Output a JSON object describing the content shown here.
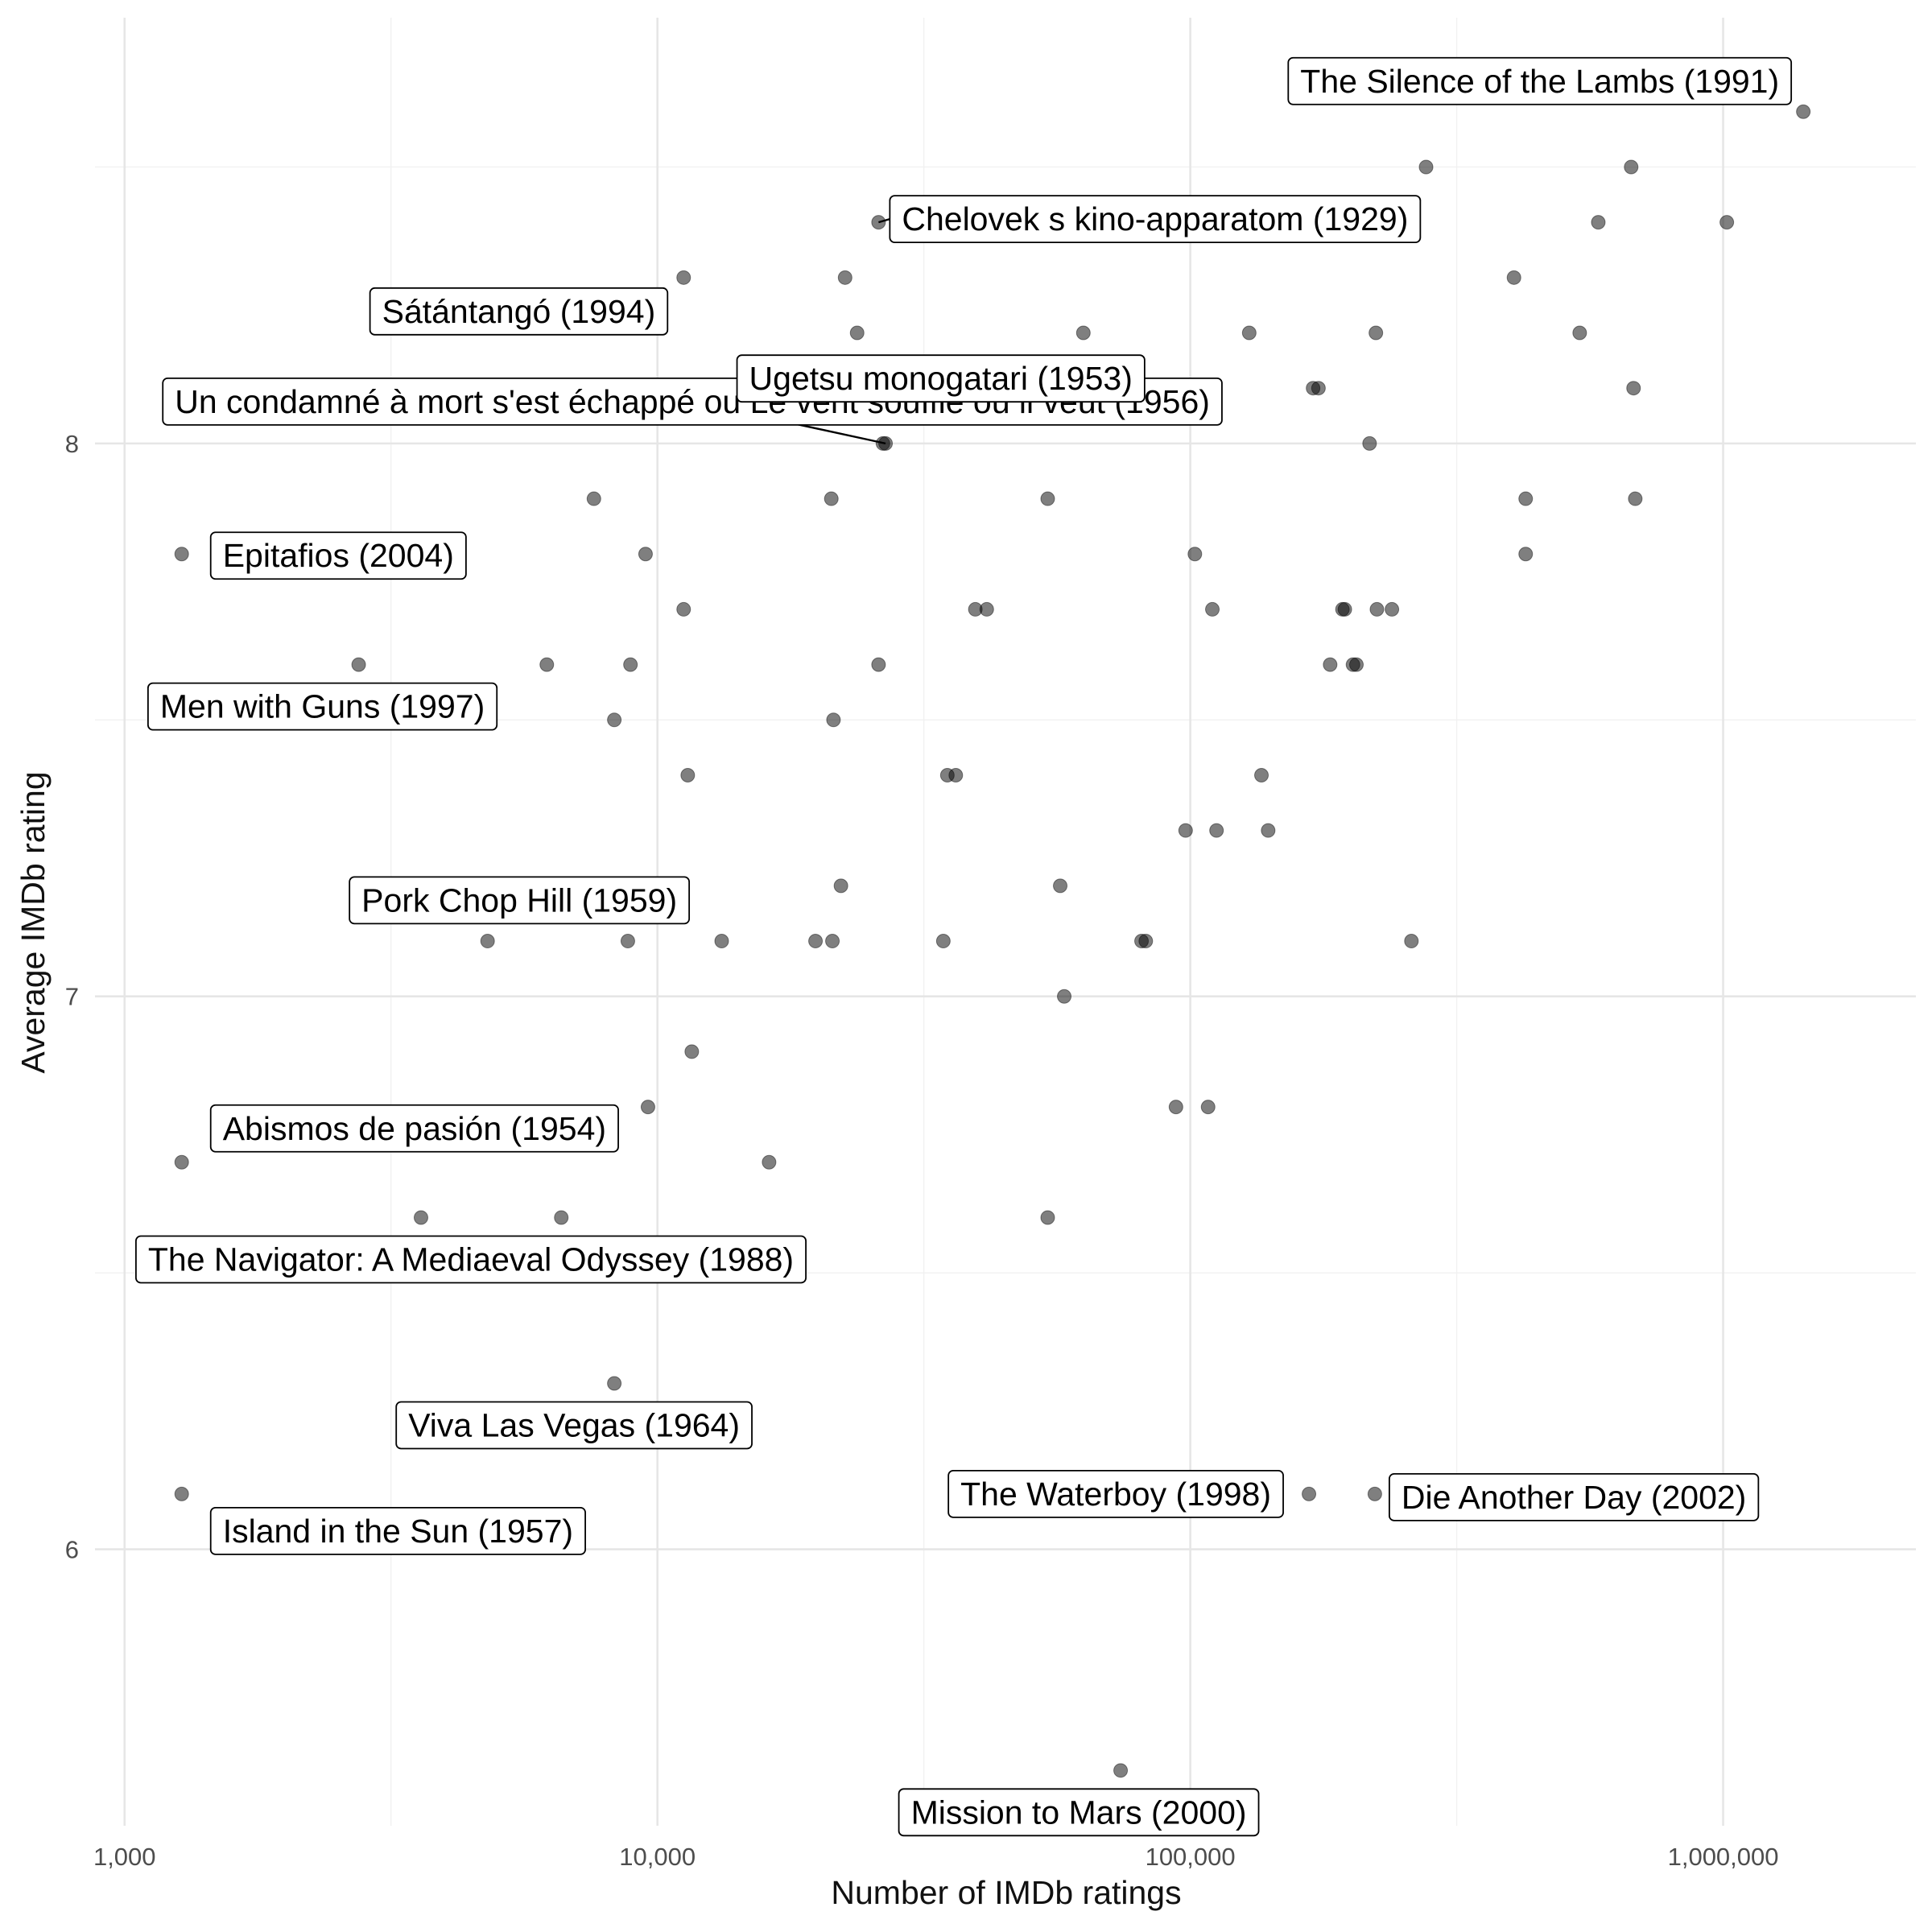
{
  "chart_data": {
    "type": "scatter",
    "title": "",
    "xlabel": "Number of IMDb ratings",
    "ylabel": "Average IMDb rating",
    "x_scale": "log10",
    "xlim": [
      880,
      2300000
    ],
    "ylim": [
      5.5,
      8.77
    ],
    "grid": true,
    "x_ticks": [
      {
        "value": 1000,
        "label": "1,000"
      },
      {
        "value": 10000,
        "label": "10,000"
      },
      {
        "value": 100000,
        "label": "100,000"
      },
      {
        "value": 1000000,
        "label": "1,000,000"
      }
    ],
    "y_ticks": [
      {
        "value": 6,
        "label": "6"
      },
      {
        "value": 7,
        "label": "7"
      },
      {
        "value": 8,
        "label": "8"
      }
    ],
    "points": [
      {
        "x": 1414000,
        "y": 8.6
      },
      {
        "x": 277000,
        "y": 8.5
      },
      {
        "x": 672000,
        "y": 8.5
      },
      {
        "x": 26000,
        "y": 8.4
      },
      {
        "x": 583000,
        "y": 8.4
      },
      {
        "x": 1016000,
        "y": 8.4
      },
      {
        "x": 11200,
        "y": 8.3
      },
      {
        "x": 22500,
        "y": 8.3
      },
      {
        "x": 405000,
        "y": 8.3
      },
      {
        "x": 23700,
        "y": 8.2
      },
      {
        "x": 63000,
        "y": 8.2
      },
      {
        "x": 129000,
        "y": 8.2
      },
      {
        "x": 223000,
        "y": 8.2
      },
      {
        "x": 538000,
        "y": 8.2
      },
      {
        "x": 88000,
        "y": 8.1
      },
      {
        "x": 170000,
        "y": 8.1
      },
      {
        "x": 174000,
        "y": 8.1
      },
      {
        "x": 679000,
        "y": 8.1
      },
      {
        "x": 26500,
        "y": 8.0
      },
      {
        "x": 26800,
        "y": 8.0
      },
      {
        "x": 217000,
        "y": 8.0
      },
      {
        "x": 7600,
        "y": 7.9
      },
      {
        "x": 21200,
        "y": 7.9
      },
      {
        "x": 54000,
        "y": 7.9
      },
      {
        "x": 426000,
        "y": 7.9
      },
      {
        "x": 684000,
        "y": 7.9
      },
      {
        "x": 1280,
        "y": 7.8
      },
      {
        "x": 9500,
        "y": 7.8
      },
      {
        "x": 102000,
        "y": 7.8
      },
      {
        "x": 426000,
        "y": 7.8
      },
      {
        "x": 11200,
        "y": 7.7
      },
      {
        "x": 39500,
        "y": 7.7
      },
      {
        "x": 41500,
        "y": 7.7
      },
      {
        "x": 110000,
        "y": 7.7
      },
      {
        "x": 193000,
        "y": 7.7
      },
      {
        "x": 195000,
        "y": 7.7
      },
      {
        "x": 224000,
        "y": 7.7
      },
      {
        "x": 239000,
        "y": 7.7
      },
      {
        "x": 2750,
        "y": 7.6
      },
      {
        "x": 6200,
        "y": 7.6
      },
      {
        "x": 8900,
        "y": 7.6
      },
      {
        "x": 26000,
        "y": 7.6
      },
      {
        "x": 183000,
        "y": 7.6
      },
      {
        "x": 202000,
        "y": 7.6
      },
      {
        "x": 205000,
        "y": 7.6
      },
      {
        "x": 8300,
        "y": 7.5
      },
      {
        "x": 21400,
        "y": 7.5
      },
      {
        "x": 11400,
        "y": 7.4
      },
      {
        "x": 35000,
        "y": 7.4
      },
      {
        "x": 36300,
        "y": 7.4
      },
      {
        "x": 136000,
        "y": 7.4
      },
      {
        "x": 98000,
        "y": 7.3
      },
      {
        "x": 112000,
        "y": 7.3
      },
      {
        "x": 140000,
        "y": 7.3
      },
      {
        "x": 5300,
        "y": 7.2
      },
      {
        "x": 5900,
        "y": 7.2
      },
      {
        "x": 8100,
        "y": 7.2
      },
      {
        "x": 22100,
        "y": 7.2
      },
      {
        "x": 57000,
        "y": 7.2
      },
      {
        "x": 4800,
        "y": 7.1
      },
      {
        "x": 8800,
        "y": 7.1
      },
      {
        "x": 13200,
        "y": 7.1
      },
      {
        "x": 19800,
        "y": 7.1
      },
      {
        "x": 21300,
        "y": 7.1
      },
      {
        "x": 34400,
        "y": 7.1
      },
      {
        "x": 81000,
        "y": 7.1
      },
      {
        "x": 82500,
        "y": 7.1
      },
      {
        "x": 260000,
        "y": 7.1
      },
      {
        "x": 58000,
        "y": 7.0
      },
      {
        "x": 11600,
        "y": 6.9
      },
      {
        "x": 9600,
        "y": 6.8
      },
      {
        "x": 94000,
        "y": 6.8
      },
      {
        "x": 108000,
        "y": 6.8
      },
      {
        "x": 1280,
        "y": 6.7
      },
      {
        "x": 16200,
        "y": 6.7
      },
      {
        "x": 3600,
        "y": 6.6
      },
      {
        "x": 6600,
        "y": 6.6
      },
      {
        "x": 54000,
        "y": 6.6
      },
      {
        "x": 8300,
        "y": 6.3
      },
      {
        "x": 1280,
        "y": 6.1
      },
      {
        "x": 167000,
        "y": 6.1
      },
      {
        "x": 222000,
        "y": 6.1
      },
      {
        "x": 74000,
        "y": 5.6
      }
    ],
    "annotations": [
      {
        "text": "The Silence of the Lambs (1991)",
        "x": 1414000,
        "y": 8.6,
        "align": "right"
      },
      {
        "text": "Chelovek s kino-apparatom (1929)",
        "x": 26000,
        "y": 8.4,
        "align": "left"
      },
      {
        "text": "Un condamné à mort s'est échappé ou Le vent souffle où il veut (1956)",
        "x": 26800,
        "y": 8.0,
        "align": "center"
      },
      {
        "text": "Sátántangó (1994)",
        "x": 11200,
        "y": 8.3,
        "align": "right"
      },
      {
        "text": "Ugetsu monogatari (1953)",
        "x": 88000,
        "y": 8.1,
        "align": "right"
      },
      {
        "text": "Epitafios (2004)",
        "x": 1280,
        "y": 7.8,
        "align": "left"
      },
      {
        "text": "Men with Guns (1997)",
        "x": 2750,
        "y": 7.6,
        "align": "center"
      },
      {
        "text": "Pork Chop Hill (1959)",
        "x": 5300,
        "y": 7.2,
        "align": "left"
      },
      {
        "text": "Abismos de pasión (1954)",
        "x": 1280,
        "y": 6.7,
        "align": "left"
      },
      {
        "text": "The Navigator: A Mediaeval Odyssey (1988)",
        "x": 3600,
        "y": 6.6,
        "align": "center"
      },
      {
        "text": "Viva Las Vegas (1964)",
        "x": 8300,
        "y": 6.3,
        "align": "center"
      },
      {
        "text": "The Waterboy (1998)",
        "x": 167000,
        "y": 6.1,
        "align": "right"
      },
      {
        "text": "Die Another Day (2002)",
        "x": 222000,
        "y": 6.1,
        "align": "left"
      },
      {
        "text": "Island in the Sun (1957)",
        "x": 1280,
        "y": 6.1,
        "align": "left"
      },
      {
        "text": "Mission to Mars (2000)",
        "x": 74000,
        "y": 5.6,
        "align": "center"
      }
    ]
  }
}
